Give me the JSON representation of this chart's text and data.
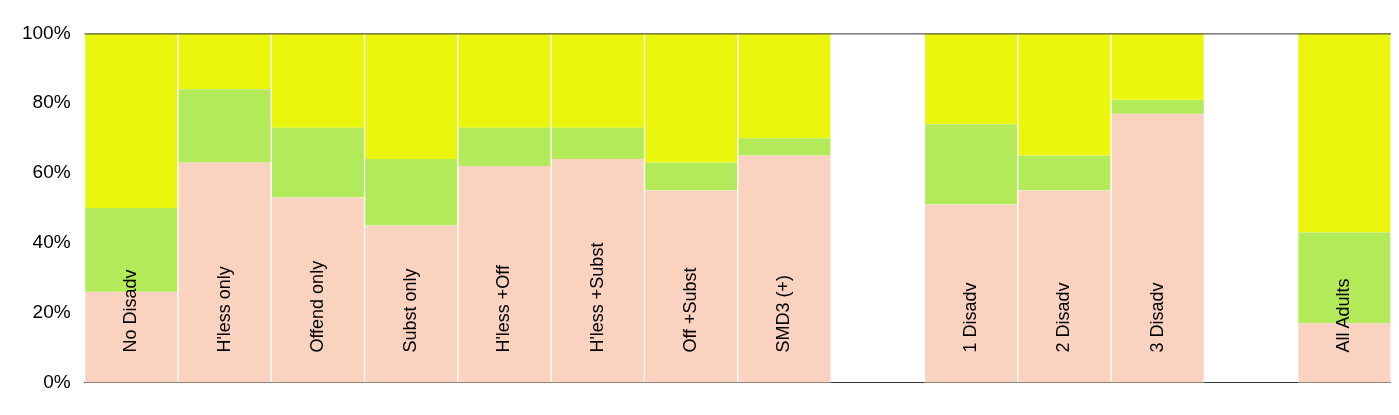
{
  "chart_data": {
    "type": "bar",
    "stacked": true,
    "categories": [
      "No Disadv",
      "H'less only",
      "Offend only",
      "Subst only",
      "H'less +Off",
      "H'less +Subst",
      "Off +Subst",
      "SMD3 (+)",
      null,
      "1 Disadv",
      "2 Disadv",
      "3 Disadv",
      null,
      "All Adults"
    ],
    "series": [
      {
        "color": "#f9d3bf",
        "values": [
          26,
          63,
          53,
          45,
          62,
          64,
          55,
          65,
          null,
          51,
          55,
          77,
          null,
          17
        ]
      },
      {
        "color": "#b2ea59",
        "values": [
          24,
          21,
          20,
          19,
          11,
          9,
          8,
          5,
          null,
          23,
          10,
          4,
          null,
          26
        ]
      },
      {
        "color": "#eaf70c",
        "values": [
          50,
          16,
          27,
          36,
          27,
          27,
          37,
          30,
          null,
          26,
          35,
          19,
          null,
          57
        ]
      }
    ],
    "ylim": [
      0,
      100
    ],
    "yticks": [
      {
        "value": 0,
        "label": "0%"
      },
      {
        "value": 20,
        "label": "20%"
      },
      {
        "value": 40,
        "label": "40%"
      },
      {
        "value": 60,
        "label": "60%"
      },
      {
        "value": 80,
        "label": "80%"
      },
      {
        "value": 100,
        "label": "100%"
      }
    ],
    "grid": false,
    "legend": false
  }
}
